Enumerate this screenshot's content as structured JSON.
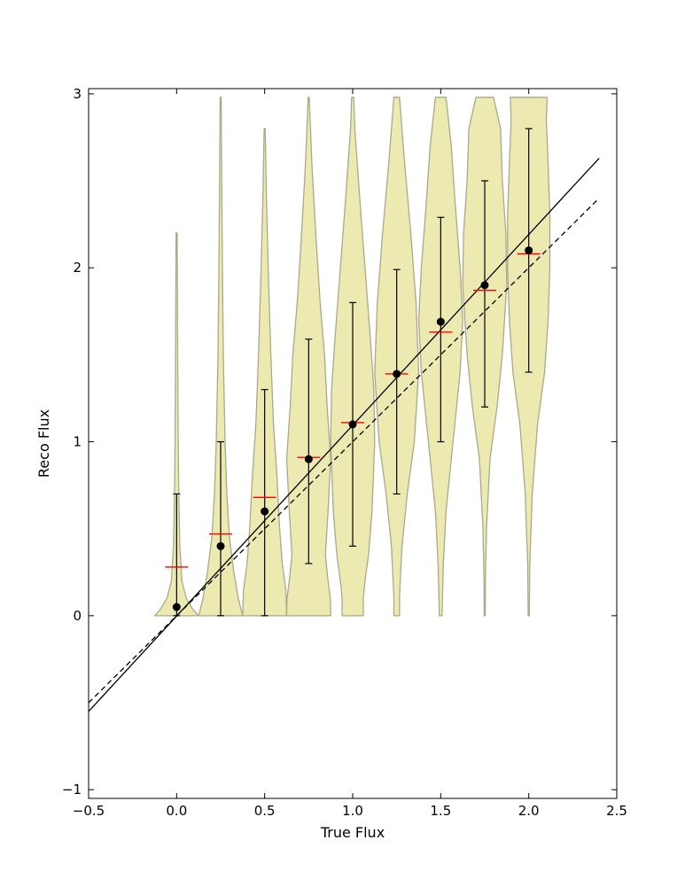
{
  "chart_data": {
    "type": "violin",
    "title": "",
    "xlabel": "True Flux",
    "ylabel": "Reco Flux",
    "xlim": [
      -0.5,
      2.5
    ],
    "ylim": [
      -1.05,
      3.03
    ],
    "xticks": [
      -0.5,
      0.0,
      0.5,
      1.0,
      1.5,
      2.0,
      2.5
    ],
    "xtick_labels": [
      "−0.5",
      "0.0",
      "0.5",
      "1.0",
      "1.5",
      "2.0",
      "2.5"
    ],
    "yticks": [
      -1,
      0,
      1,
      2,
      3
    ],
    "ytick_labels": [
      "−1",
      "0",
      "1",
      "2",
      "3"
    ],
    "grid": false,
    "colors": {
      "violin_fill": "#eceab0",
      "violin_edge": "#a9a98c",
      "mean_marker": "#000000",
      "median_marker": "#ff0000",
      "error_bar": "#000000",
      "fit_line": "#000000",
      "identity_line": "#000000"
    },
    "violins": [
      {
        "x": 0.0,
        "max": 2.2,
        "mean": 0.05,
        "median": 0.28,
        "err_low": 0.0,
        "err_high": 0.7,
        "profile": [
          [
            0.0,
            0.125
          ],
          [
            0.04,
            0.09
          ],
          [
            0.1,
            0.055
          ],
          [
            0.2,
            0.03
          ],
          [
            0.4,
            0.018
          ],
          [
            0.7,
            0.012
          ],
          [
            1.0,
            0.009
          ],
          [
            1.5,
            0.006
          ],
          [
            2.2,
            0.003
          ]
        ]
      },
      {
        "x": 0.25,
        "max": 2.98,
        "mean": 0.4,
        "median": 0.47,
        "err_low": 0.0,
        "err_high": 1.0,
        "profile": [
          [
            0.0,
            0.125
          ],
          [
            0.1,
            0.1
          ],
          [
            0.25,
            0.075
          ],
          [
            0.45,
            0.05
          ],
          [
            0.7,
            0.035
          ],
          [
            1.0,
            0.025
          ],
          [
            1.5,
            0.015
          ],
          [
            2.0,
            0.01
          ],
          [
            2.5,
            0.006
          ],
          [
            2.98,
            0.003
          ]
        ]
      },
      {
        "x": 0.5,
        "max": 2.8,
        "mean": 0.6,
        "median": 0.68,
        "err_low": 0.0,
        "err_high": 1.3,
        "profile": [
          [
            0.0,
            0.125
          ],
          [
            0.15,
            0.12
          ],
          [
            0.3,
            0.1
          ],
          [
            0.5,
            0.085
          ],
          [
            0.8,
            0.07
          ],
          [
            1.1,
            0.05
          ],
          [
            1.5,
            0.035
          ],
          [
            2.0,
            0.02
          ],
          [
            2.4,
            0.01
          ],
          [
            2.8,
            0.003
          ]
        ]
      },
      {
        "x": 0.75,
        "max": 2.98,
        "mean": 0.9,
        "median": 0.91,
        "err_low": 0.3,
        "err_high": 1.59,
        "profile": [
          [
            0.0,
            0.125
          ],
          [
            0.1,
            0.123
          ],
          [
            0.2,
            0.11
          ],
          [
            0.35,
            0.095
          ],
          [
            0.6,
            0.11
          ],
          [
            0.9,
            0.125
          ],
          [
            1.2,
            0.105
          ],
          [
            1.5,
            0.09
          ],
          [
            1.8,
            0.065
          ],
          [
            2.2,
            0.04
          ],
          [
            2.6,
            0.018
          ],
          [
            2.98,
            0.003
          ]
        ]
      },
      {
        "x": 1.0,
        "max": 2.98,
        "mean": 1.1,
        "median": 1.11,
        "err_low": 0.4,
        "err_high": 1.8,
        "profile": [
          [
            0.0,
            0.06
          ],
          [
            0.1,
            0.06
          ],
          [
            0.2,
            0.07
          ],
          [
            0.35,
            0.09
          ],
          [
            0.6,
            0.11
          ],
          [
            1.0,
            0.125
          ],
          [
            1.3,
            0.12
          ],
          [
            1.6,
            0.1
          ],
          [
            2.0,
            0.07
          ],
          [
            2.4,
            0.04
          ],
          [
            2.8,
            0.012
          ],
          [
            2.98,
            0.006
          ]
        ]
      },
      {
        "x": 1.25,
        "max": 2.98,
        "mean": 1.39,
        "median": 1.39,
        "err_low": 0.7,
        "err_high": 1.99,
        "profile": [
          [
            0.0,
            0.016
          ],
          [
            0.1,
            0.016
          ],
          [
            0.2,
            0.02
          ],
          [
            0.4,
            0.03
          ],
          [
            0.7,
            0.06
          ],
          [
            1.0,
            0.1
          ],
          [
            1.4,
            0.125
          ],
          [
            1.8,
            0.11
          ],
          [
            2.2,
            0.08
          ],
          [
            2.6,
            0.045
          ],
          [
            2.98,
            0.016
          ]
        ]
      },
      {
        "x": 1.5,
        "max": 2.98,
        "mean": 1.69,
        "median": 1.63,
        "err_low": 1.0,
        "err_high": 2.29,
        "profile": [
          [
            0.0,
            0.008
          ],
          [
            0.1,
            0.01
          ],
          [
            0.3,
            0.015
          ],
          [
            0.6,
            0.03
          ],
          [
            1.0,
            0.07
          ],
          [
            1.4,
            0.11
          ],
          [
            1.7,
            0.125
          ],
          [
            2.0,
            0.11
          ],
          [
            2.4,
            0.08
          ],
          [
            2.7,
            0.06
          ],
          [
            2.98,
            0.03
          ]
        ]
      },
      {
        "x": 1.75,
        "max": 2.98,
        "mean": 1.9,
        "median": 1.87,
        "err_low": 1.2,
        "err_high": 2.5,
        "profile": [
          [
            0.0,
            0.003
          ],
          [
            0.2,
            0.004
          ],
          [
            0.5,
            0.01
          ],
          [
            0.9,
            0.03
          ],
          [
            1.2,
            0.07
          ],
          [
            1.5,
            0.1
          ],
          [
            1.9,
            0.125
          ],
          [
            2.2,
            0.12
          ],
          [
            2.5,
            0.1
          ],
          [
            2.8,
            0.09
          ],
          [
            2.98,
            0.05
          ]
        ]
      },
      {
        "x": 2.0,
        "max": 2.98,
        "mean": 2.1,
        "median": 2.08,
        "err_low": 1.4,
        "err_high": 2.8,
        "profile": [
          [
            0.0,
            0.003
          ],
          [
            0.3,
            0.006
          ],
          [
            0.7,
            0.02
          ],
          [
            1.1,
            0.05
          ],
          [
            1.4,
            0.09
          ],
          [
            1.7,
            0.11
          ],
          [
            2.0,
            0.12
          ],
          [
            2.3,
            0.12
          ],
          [
            2.6,
            0.11
          ],
          [
            2.85,
            0.1
          ],
          [
            2.98,
            0.105
          ]
        ]
      }
    ],
    "lines": [
      {
        "style": "solid",
        "x": [
          -0.5,
          2.4
        ],
        "y": [
          -0.55,
          2.63
        ]
      },
      {
        "style": "dashed",
        "x": [
          -0.5,
          2.4
        ],
        "y": [
          -0.5,
          2.4
        ]
      }
    ]
  }
}
